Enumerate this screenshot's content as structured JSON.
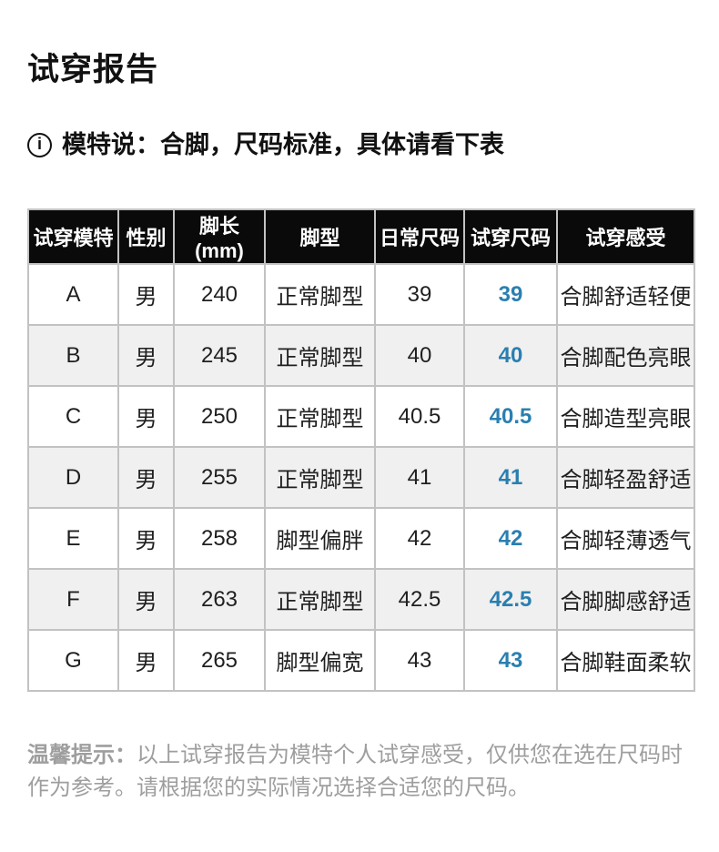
{
  "page": {
    "title": "试穿报告"
  },
  "model_note": {
    "icon": "info-icon",
    "icon_glyph": "i",
    "text": "模特说：合脚，尺码标准，具体请看下表"
  },
  "table": {
    "columns": [
      "试穿模特",
      "性别",
      "脚长(mm)",
      "脚型",
      "日常尺码",
      "试穿尺码",
      "试穿感受"
    ],
    "column_keys": [
      "model",
      "gender",
      "foot-length",
      "foot-type",
      "daily-size",
      "tryon-size",
      "feel"
    ],
    "rows": [
      [
        "A",
        "男",
        "240",
        "正常脚型",
        "39",
        "39",
        "合脚舒适轻便"
      ],
      [
        "B",
        "男",
        "245",
        "正常脚型",
        "40",
        "40",
        "合脚配色亮眼"
      ],
      [
        "C",
        "男",
        "250",
        "正常脚型",
        "40.5",
        "40.5",
        "合脚造型亮眼"
      ],
      [
        "D",
        "男",
        "255",
        "正常脚型",
        "41",
        "41",
        "合脚轻盈舒适"
      ],
      [
        "E",
        "男",
        "258",
        "脚型偏胖",
        "42",
        "42",
        "合脚轻薄透气"
      ],
      [
        "F",
        "男",
        "263",
        "正常脚型",
        "42.5",
        "42.5",
        "合脚脚感舒适"
      ],
      [
        "G",
        "男",
        "265",
        "脚型偏宽",
        "43",
        "43",
        "合脚鞋面柔软"
      ]
    ],
    "highlight_column_index": 5
  },
  "footer": {
    "label": "温馨提示：",
    "text": "以上试穿报告为模特个人试穿感受，仅供您在选在尺码时作为参考。请根据您的实际情况选择合适您的尺码。"
  },
  "colors": {
    "accent_blue": "#2a7fb0",
    "header_bg": "#0a0a0a",
    "alt_row_bg": "#f0f0f0",
    "border": "#c2c2c2",
    "footer_gray": "#9e9e9e"
  }
}
